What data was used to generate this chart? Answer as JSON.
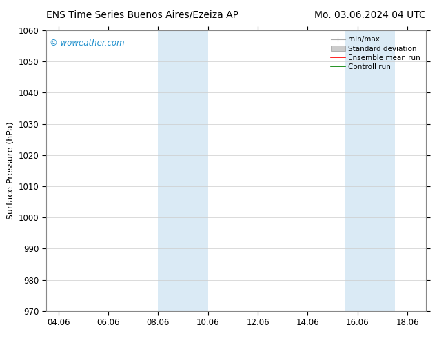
{
  "title_left": "ENS Time Series Buenos Aires/Ezeiza AP",
  "title_right": "Mo. 03.06.2024 04 UTC",
  "ylabel": "Surface Pressure (hPa)",
  "ylim": [
    970,
    1060
  ],
  "yticks": [
    970,
    980,
    990,
    1000,
    1010,
    1020,
    1030,
    1040,
    1050,
    1060
  ],
  "xlim_start": 3.5,
  "xlim_end": 18.75,
  "xtick_labels": [
    "04.06",
    "06.06",
    "08.06",
    "10.06",
    "12.06",
    "14.06",
    "16.06",
    "18.06"
  ],
  "xtick_positions": [
    4.0,
    6.0,
    8.0,
    10.0,
    12.0,
    14.0,
    16.0,
    18.0
  ],
  "shaded_bands": [
    {
      "x_start": 8.0,
      "x_end": 10.0,
      "color": "#daeaf5"
    },
    {
      "x_start": 15.5,
      "x_end": 17.5,
      "color": "#daeaf5"
    }
  ],
  "watermark_text": "© woweather.com",
  "watermark_color": "#1e8fcc",
  "legend_items": [
    {
      "label": "min/max",
      "type": "errorbar",
      "color": "#aaaaaa"
    },
    {
      "label": "Standard deviation",
      "type": "patch",
      "color": "#cccccc"
    },
    {
      "label": "Ensemble mean run",
      "type": "line",
      "color": "red"
    },
    {
      "label": "Controll run",
      "type": "line",
      "color": "green"
    }
  ],
  "background_color": "#ffffff",
  "grid_color": "#cccccc",
  "title_fontsize": 10,
  "axis_label_fontsize": 9,
  "tick_fontsize": 8.5,
  "legend_fontsize": 7.5
}
